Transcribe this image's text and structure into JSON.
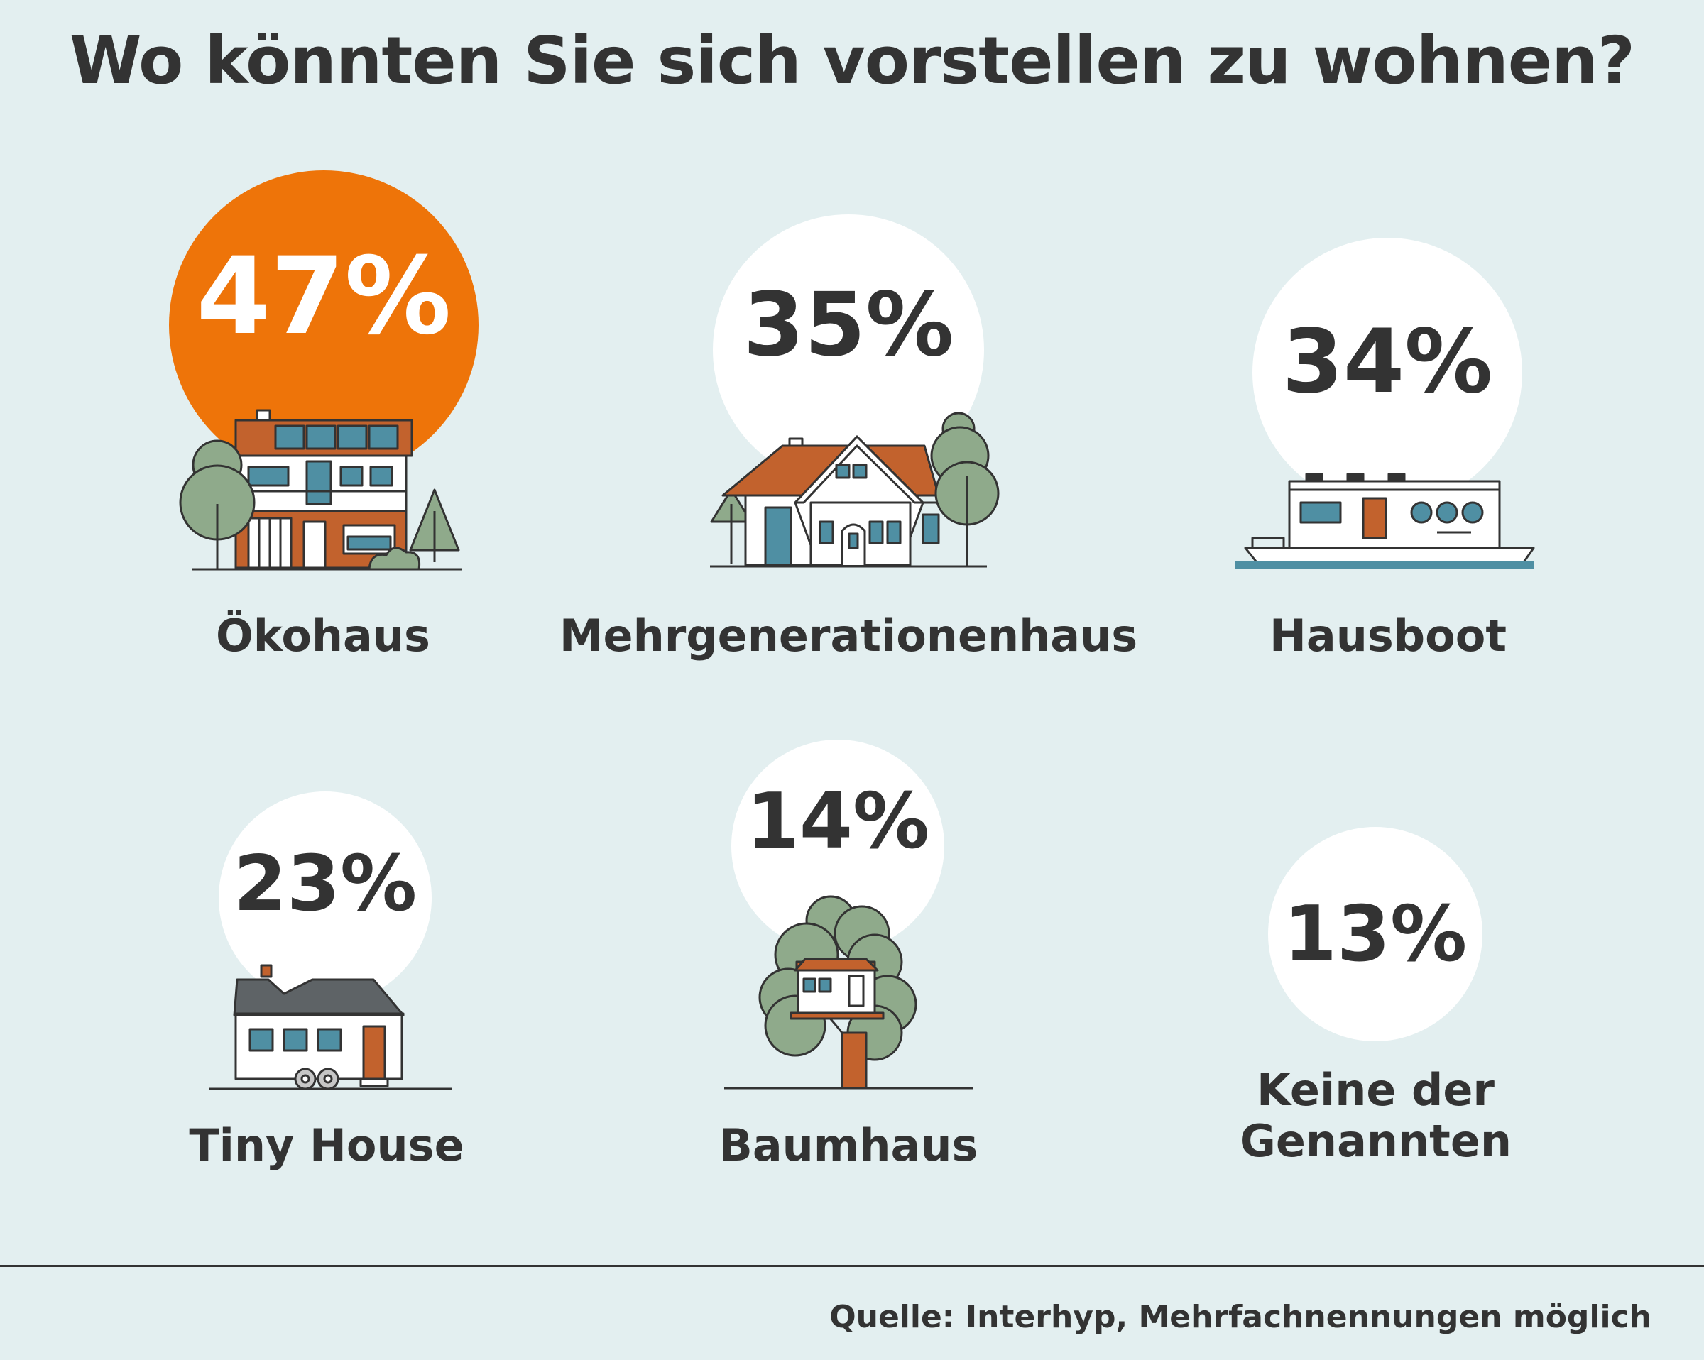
{
  "title": "Wo könnten Sie sich vorstellen zu wohnen?",
  "chart_data": {
    "type": "bubble",
    "title": "Wo könnten Sie sich vorstellen zu wohnen?",
    "unit": "%",
    "categories": [
      "Ökohaus",
      "Mehrgenerationenhaus",
      "Hausboot",
      "Tiny House",
      "Baumhaus",
      "Keine der Genannten"
    ],
    "values": [
      47,
      35,
      34,
      23,
      14,
      13
    ],
    "value_labels": [
      "47%",
      "35%",
      "34%",
      "23%",
      "14%",
      "13%"
    ],
    "highlight": "Ökohaus"
  },
  "items": [
    {
      "label": "Ökohaus",
      "value": "47%",
      "icon": "eco-house-icon"
    },
    {
      "label": "Mehrgenerationenhaus",
      "value": "35%",
      "icon": "multigenerational-house-icon"
    },
    {
      "label": "Hausboot",
      "value": "34%",
      "icon": "houseboat-icon"
    },
    {
      "label": "Tiny House",
      "value": "23%",
      "icon": "tiny-house-icon"
    },
    {
      "label": "Baumhaus",
      "value": "14%",
      "icon": "treehouse-icon"
    },
    {
      "label": "Keine der Genannten",
      "value": "13%",
      "icon": ""
    }
  ],
  "source": "Quelle: Interhyp, Mehrfachnennungen möglich",
  "colors": {
    "background": "#e3eff0",
    "highlight": "#ee7409",
    "bubble": "#ffffff",
    "text": "#333333",
    "roof": "#c2622d",
    "window": "#4f8fa3",
    "tree": "#8faa8b",
    "water": "#4f8fa3"
  }
}
